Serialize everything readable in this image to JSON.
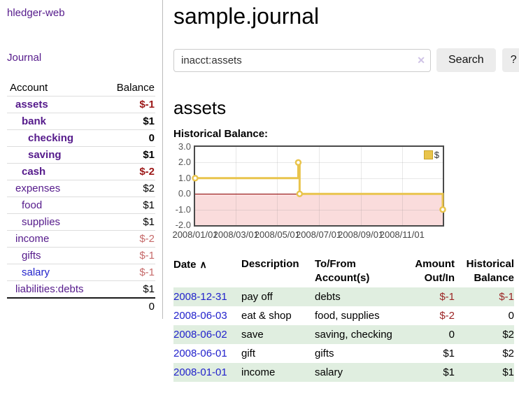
{
  "app": {
    "title": "hledger-web"
  },
  "sidebar": {
    "nav": [
      {
        "label": "Journal"
      }
    ],
    "accounts_table": {
      "headers": {
        "account": "Account",
        "balance": "Balance"
      },
      "rows": [
        {
          "name": "assets",
          "indent": 1,
          "bold": true,
          "balance": "$-1",
          "neg": "strong",
          "link": "purple"
        },
        {
          "name": "bank",
          "indent": 2,
          "bold": true,
          "balance": "$1",
          "neg": "none",
          "link": "purple"
        },
        {
          "name": "checking",
          "indent": 3,
          "bold": true,
          "balance": "0",
          "neg": "none",
          "link": "purple"
        },
        {
          "name": "saving",
          "indent": 3,
          "bold": true,
          "balance": "$1",
          "neg": "none",
          "link": "purple"
        },
        {
          "name": "cash",
          "indent": 2,
          "bold": true,
          "balance": "$-2",
          "neg": "strong",
          "link": "purple"
        },
        {
          "name": "expenses",
          "indent": 1,
          "bold": false,
          "balance": "$2",
          "neg": "none",
          "link": "purple"
        },
        {
          "name": "food",
          "indent": 2,
          "bold": false,
          "balance": "$1",
          "neg": "none",
          "link": "purple"
        },
        {
          "name": "supplies",
          "indent": 2,
          "bold": false,
          "balance": "$1",
          "neg": "none",
          "link": "purple"
        },
        {
          "name": "income",
          "indent": 1,
          "bold": false,
          "balance": "$-2",
          "neg": "soft",
          "link": "purple"
        },
        {
          "name": "gifts",
          "indent": 2,
          "bold": false,
          "balance": "$-1",
          "neg": "soft",
          "link": "purple"
        },
        {
          "name": "salary",
          "indent": 2,
          "bold": false,
          "balance": "$-1",
          "neg": "soft",
          "link": "blue"
        },
        {
          "name": "liabilities:debts",
          "indent": 1,
          "bold": false,
          "balance": "$1",
          "neg": "none",
          "link": "purple"
        }
      ],
      "total": "0"
    }
  },
  "header": {
    "title": "sample.journal"
  },
  "search": {
    "value": "inacct:assets",
    "clear_icon": "✕",
    "button": "Search",
    "help_button": "?"
  },
  "account_page": {
    "heading": "assets",
    "chart_label": "Historical Balance:"
  },
  "colors": {
    "link_visited": "#551a8b",
    "link_unvisited": "#2222cc",
    "negative_strong": "#9c1717",
    "negative_soft": "#c66a6a",
    "row_stripe_green": "#e0eee0",
    "chart_line": "#e9c44c",
    "chart_negative_region": "#fadcdc",
    "chart_zero_line": "#8b0000"
  },
  "chart_data": {
    "type": "line",
    "step": true,
    "title": "Historical Balance:",
    "series": [
      {
        "name": "$",
        "color": "#e9c44c",
        "points": [
          [
            "2008-01-01",
            1
          ],
          [
            "2008-06-01",
            2
          ],
          [
            "2008-06-03",
            0
          ],
          [
            "2008-12-31",
            -1
          ]
        ]
      }
    ],
    "x_range": [
      "2008-01-01",
      "2008-12-31"
    ],
    "ylim": [
      -2,
      3
    ],
    "y_tick_labels": [
      "3.0",
      "2.0",
      "1.0",
      "0.0",
      "-1.0",
      "-2.0"
    ],
    "y_tick_values": [
      3,
      2,
      1,
      0,
      -1,
      -2
    ],
    "y_grid_values": [
      2,
      1,
      -1
    ],
    "x_tick_labels": [
      "2008/01/01",
      "2008/03/01",
      "2008/05/01",
      "2008/07/01",
      "2008/09/01",
      "2008/11/01"
    ],
    "x_tick_dates": [
      "2008-01-01",
      "2008-03-01",
      "2008-05-01",
      "2008-07-01",
      "2008-09-01",
      "2008-11-01"
    ],
    "legend": {
      "label": "$",
      "position": "top-right"
    },
    "negative_region_color": "#fadcdc",
    "zero_line_color": "#8b0000",
    "grid": true
  },
  "register": {
    "sort_icon": "∧",
    "headers": [
      {
        "lines": [
          "Date"
        ]
      },
      {
        "lines": [
          "Description"
        ]
      },
      {
        "lines": [
          "To/From",
          "Account(s)"
        ]
      },
      {
        "lines": [
          "Amount",
          "Out/In"
        ]
      },
      {
        "lines": [
          "Historical",
          "Balance"
        ]
      }
    ],
    "rows": [
      {
        "date": "2008-12-31",
        "description": "pay off",
        "accounts": "debts",
        "amount": "$-1",
        "amount_neg": true,
        "balance": "$-1",
        "balance_neg": true
      },
      {
        "date": "2008-06-03",
        "description": "eat & shop",
        "accounts": "food, supplies",
        "amount": "$-2",
        "amount_neg": true,
        "balance": "0",
        "balance_neg": false
      },
      {
        "date": "2008-06-02",
        "description": "save",
        "accounts": "saving, checking",
        "amount": "0",
        "amount_neg": false,
        "balance": "$2",
        "balance_neg": false
      },
      {
        "date": "2008-06-01",
        "description": "gift",
        "accounts": "gifts",
        "amount": "$1",
        "amount_neg": false,
        "balance": "$2",
        "balance_neg": false
      },
      {
        "date": "2008-01-01",
        "description": "income",
        "accounts": "salary",
        "amount": "$1",
        "amount_neg": false,
        "balance": "$1",
        "balance_neg": false
      }
    ]
  }
}
